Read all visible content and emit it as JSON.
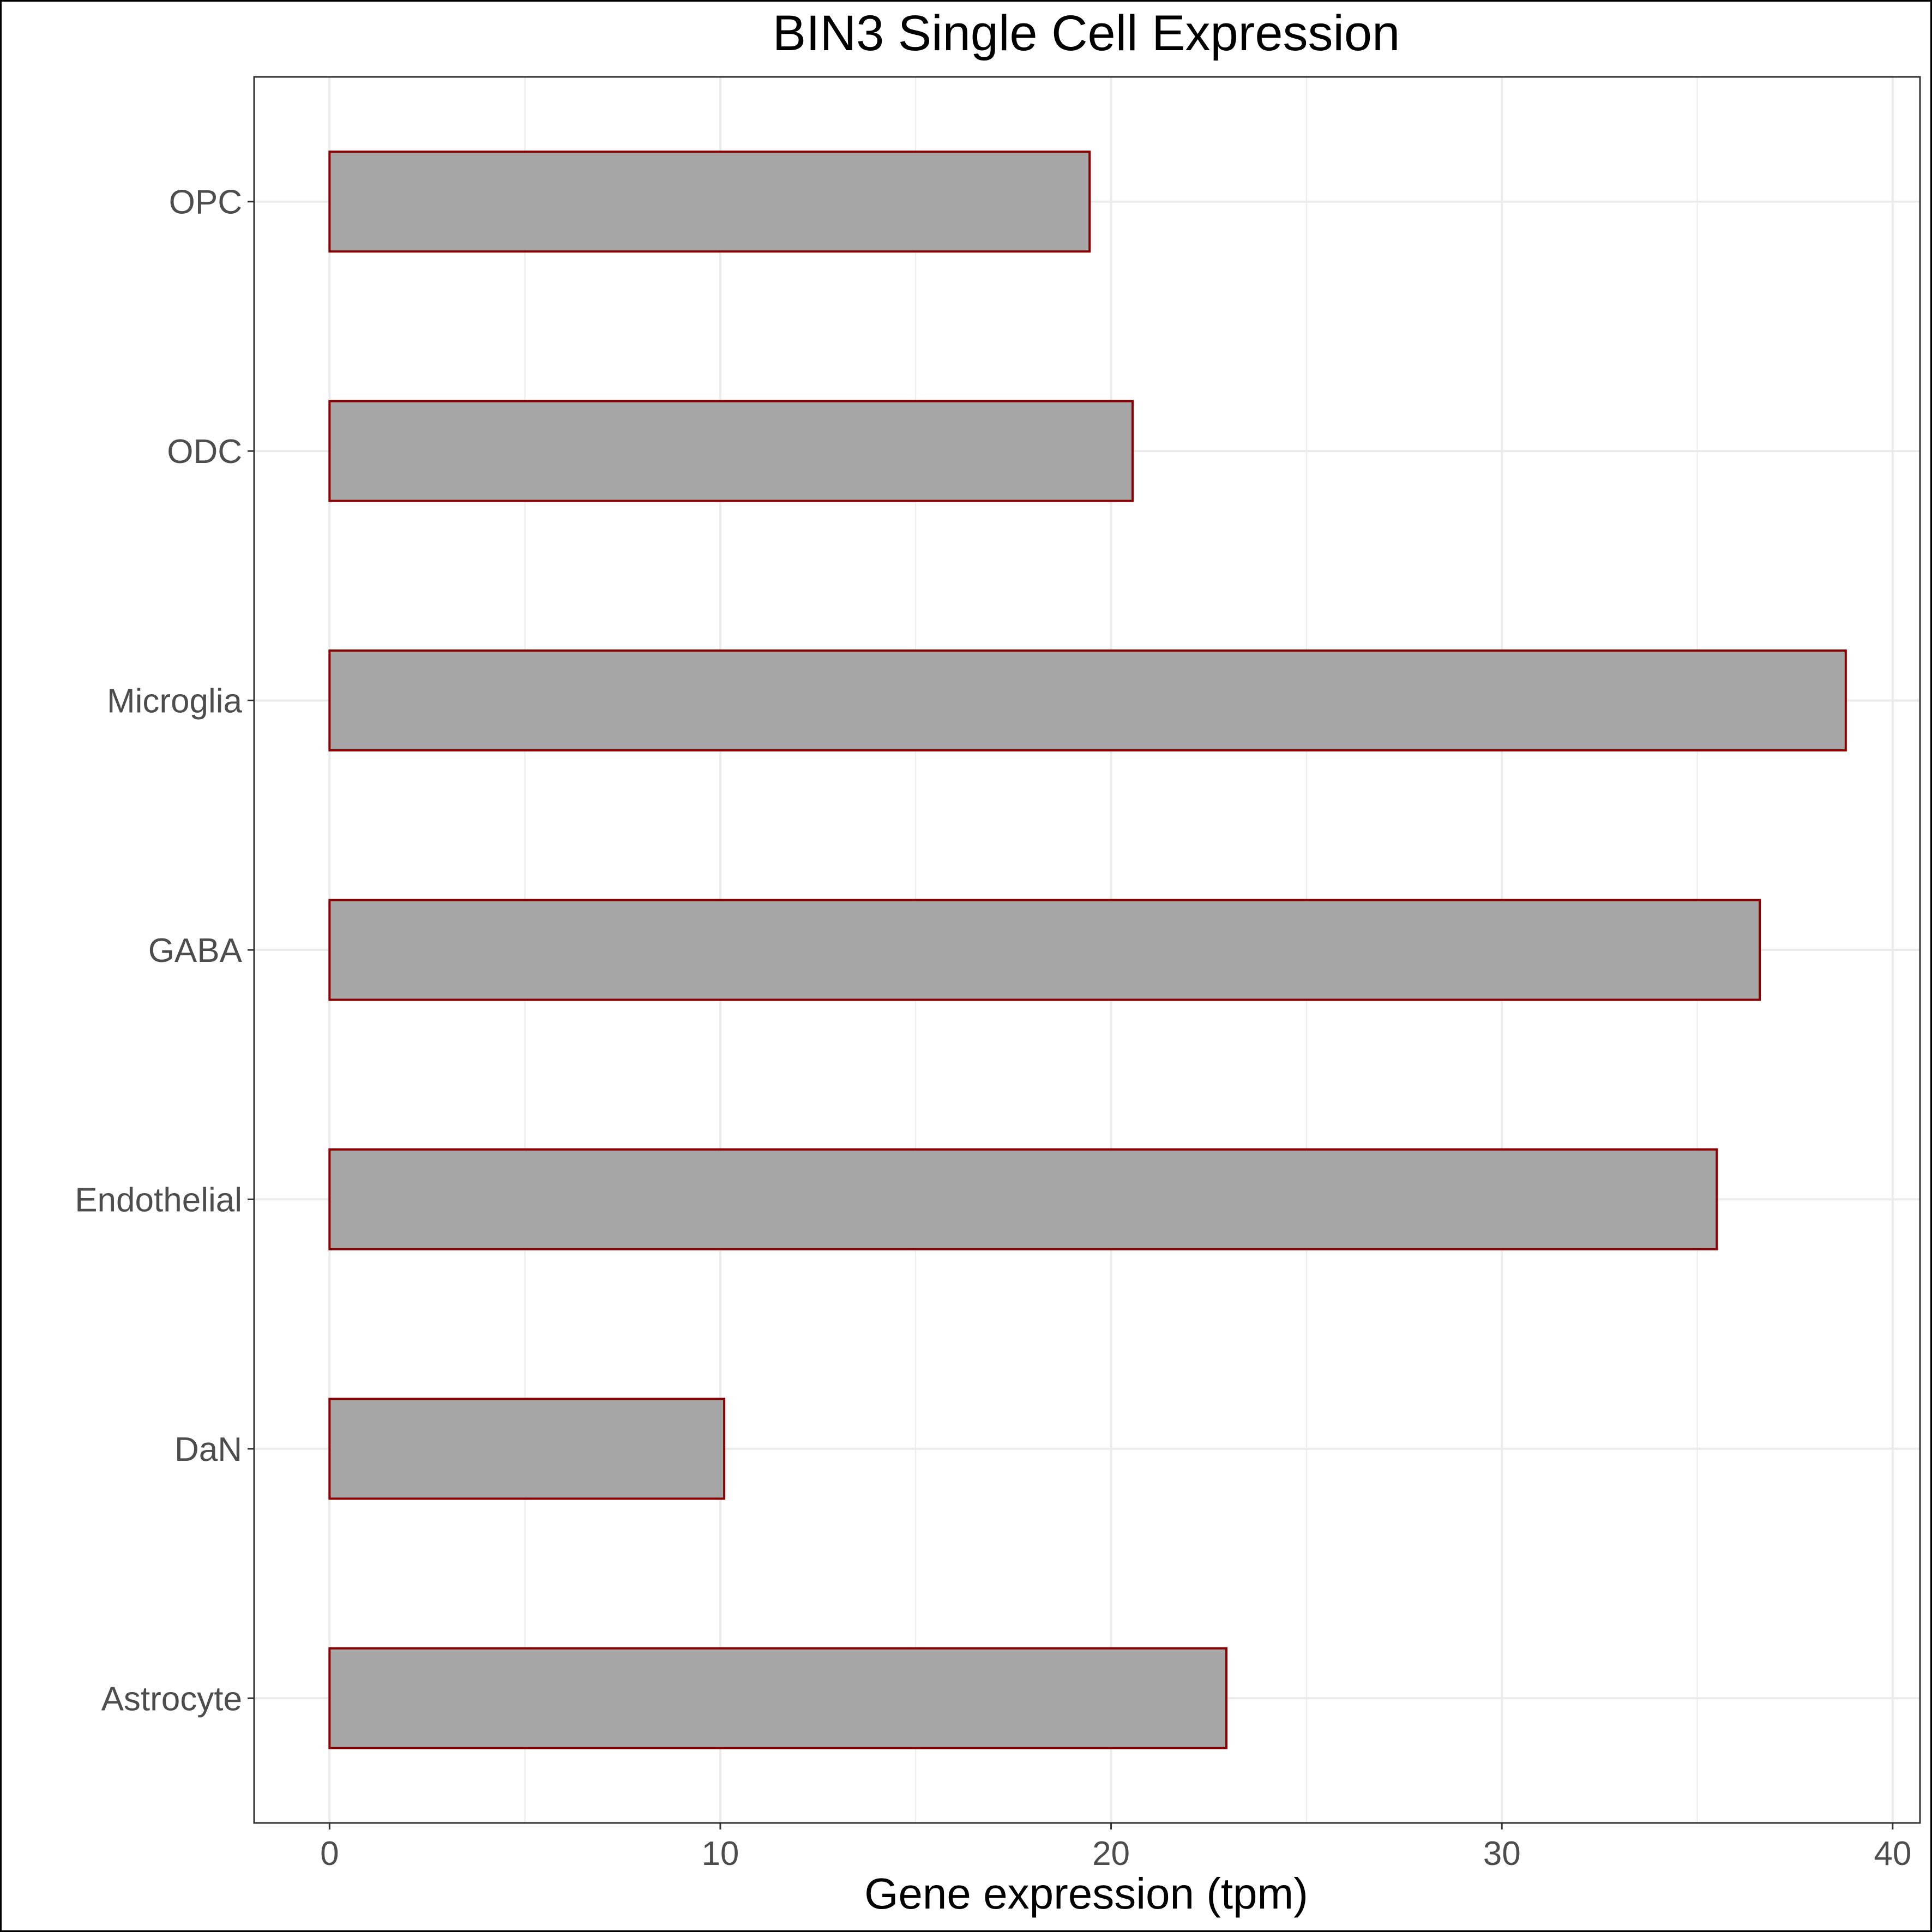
{
  "chart_data": {
    "type": "bar",
    "orientation": "horizontal",
    "title": "BIN3 Single Cell Expression",
    "xlabel": "Gene expression (tpm)",
    "ylabel": "",
    "categories": [
      "Astrocyte",
      "DaN",
      "Endothelial",
      "GABA",
      "Microglia",
      "ODC",
      "OPC"
    ],
    "values": [
      22.95,
      10.1,
      35.5,
      36.6,
      38.8,
      20.55,
      19.45
    ],
    "xlim": [
      -1.93,
      40.7
    ],
    "xticks": [
      0,
      10,
      20,
      30,
      40
    ],
    "grid": true,
    "legend": "none",
    "colors": {
      "bar_fill": "#a6a6a6",
      "bar_outline": "#8b0000",
      "grid": "#ebebeb",
      "panel_border": "#333333",
      "tick_label": "#4d4d4d"
    }
  }
}
